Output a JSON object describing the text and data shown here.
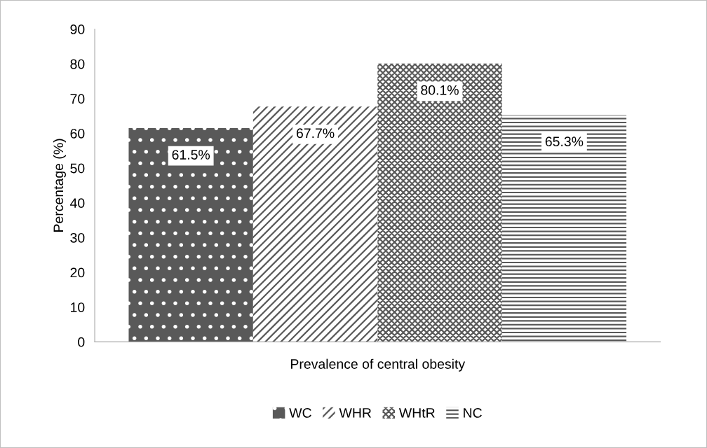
{
  "chart_data": {
    "type": "bar",
    "xlabel": "Prevalence of central obesity",
    "ylabel": "Percentage (%)",
    "categories": [
      null
    ],
    "series": [
      {
        "name": "WC",
        "color": "#595959",
        "values": [
          61.5
        ],
        "value_labels": [
          "61.5%"
        ]
      },
      {
        "name": "WHR",
        "color": "#595959",
        "values": [
          67.7
        ],
        "value_labels": [
          "67.7%"
        ]
      },
      {
        "name": "WHtR",
        "color": "#595959",
        "values": [
          80.1
        ],
        "value_labels": [
          "80.1%"
        ]
      },
      {
        "name": "NC",
        "color": "#595959",
        "values": [
          65.3
        ],
        "value_labels": [
          "65.3%"
        ]
      }
    ],
    "ylim": [
      0,
      90
    ],
    "yticks": [
      0,
      10,
      20,
      30,
      40,
      50,
      60,
      70,
      80,
      90
    ],
    "grid": false,
    "legend": "bottom"
  }
}
